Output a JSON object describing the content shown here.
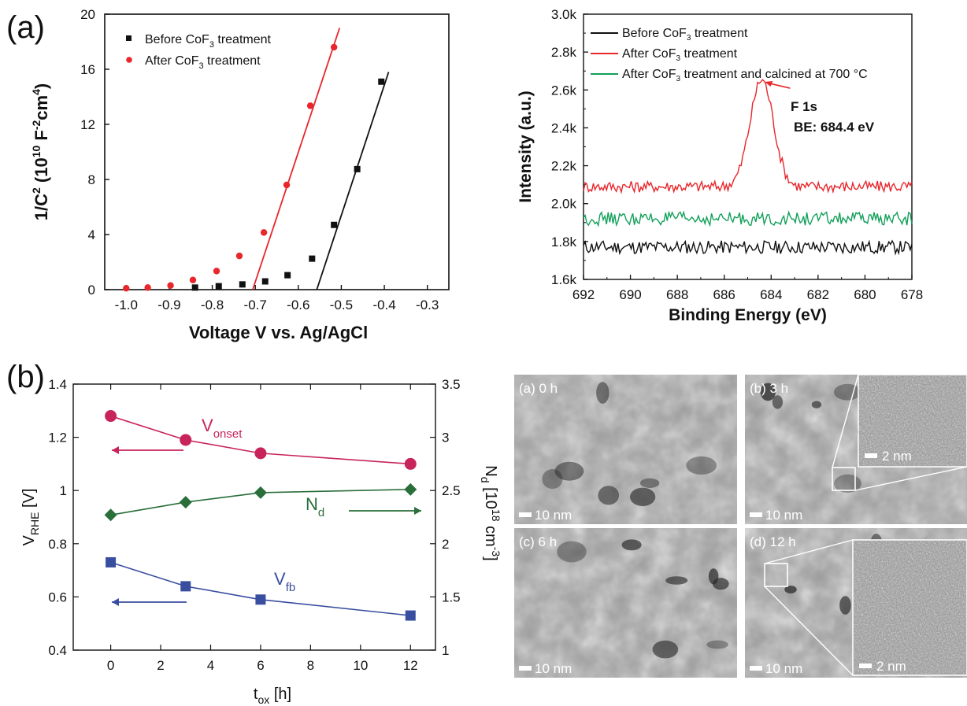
{
  "figure": {
    "panel_a_letter": "(a)",
    "panel_b_letter": "(b)"
  },
  "colors": {
    "black_series": "#111111",
    "red_series": "#e8262b",
    "green_series": "#12a05a",
    "pink_series": "#c8245c",
    "darkgreen_series": "#2a6e3a",
    "blue_series": "#3a4ea0"
  },
  "chart_data": [
    {
      "id": "mott-schottky",
      "type": "scatter",
      "xlabel": "Voltage V vs. Ag/AgCl",
      "ylabel_main": "1/C",
      "ylabel_sup1": "2",
      "ylabel_mid": " (10",
      "ylabel_sup2": "10",
      "ylabel_after": " F",
      "ylabel_sup3": "-2",
      "ylabel_cm": "cm",
      "ylabel_sup4": "4",
      "ylabel_end": ")",
      "xlim": [
        -1.05,
        -0.25
      ],
      "ylim": [
        0,
        20
      ],
      "xticks": [
        "-1.0",
        "-0.9",
        "-0.8",
        "-0.7",
        "-0.6",
        "-0.5",
        "-0.4",
        "-0.3"
      ],
      "xtick_values": [
        -1.0,
        -0.9,
        -0.8,
        -0.7,
        -0.6,
        -0.5,
        -0.4,
        -0.3
      ],
      "yticks": [
        "0",
        "4",
        "8",
        "12",
        "16",
        "20"
      ],
      "ytick_values": [
        0,
        4,
        8,
        12,
        16,
        20
      ],
      "legend_placement": "top-left",
      "series": [
        {
          "name": "Before CoF",
          "name_sub": "3",
          "name_tail": " treatment",
          "marker": "square",
          "color": "#111111",
          "x": [
            -0.84,
            -0.785,
            -0.73,
            -0.677,
            -0.625,
            -0.568,
            -0.517,
            -0.463,
            -0.407
          ],
          "y": [
            0.15,
            0.25,
            0.38,
            0.6,
            1.05,
            2.25,
            4.7,
            8.75,
            15.1
          ],
          "fit_x": [
            -0.557,
            -0.39
          ],
          "fit_y": [
            0,
            15.8
          ]
        },
        {
          "name": "After CoF",
          "name_sub": "3",
          "name_tail": " treatment",
          "marker": "circle",
          "color": "#e8262b",
          "x": [
            -1.0,
            -0.95,
            -0.897,
            -0.845,
            -0.79,
            -0.737,
            -0.68,
            -0.627,
            -0.572,
            -0.517
          ],
          "y": [
            0.1,
            0.15,
            0.3,
            0.7,
            1.35,
            2.45,
            4.15,
            7.6,
            13.35,
            17.6
          ],
          "fit_x": [
            -0.706,
            -0.504
          ],
          "fit_y": [
            0,
            19.0
          ]
        }
      ]
    },
    {
      "id": "xps-f1s",
      "type": "line",
      "xlabel": "Binding Energy (eV)",
      "ylabel": "Intensity (a.u.)",
      "xlim": [
        692,
        678
      ],
      "ylim": [
        1600,
        3000
      ],
      "xticks": [
        "692",
        "690",
        "688",
        "686",
        "684",
        "682",
        "680",
        "678"
      ],
      "xtick_values": [
        692,
        690,
        688,
        686,
        684,
        682,
        680,
        678
      ],
      "yticks": [
        "1.6k",
        "1.8k",
        "2.0k",
        "2.2k",
        "2.4k",
        "2.6k",
        "2.8k",
        "3.0k"
      ],
      "ytick_values": [
        1600,
        1800,
        2000,
        2200,
        2400,
        2600,
        2800,
        3000
      ],
      "legend_placement": "top-left",
      "annotation_peak": "F 1s",
      "annotation_be": "BE: 684.4 eV",
      "peak_x": 684.4,
      "peak_y": 2655,
      "series": [
        {
          "name": "Before CoF",
          "name_sub": "3",
          "name_tail": " treatment",
          "color": "#111111",
          "baseline": 1770,
          "noise": 35
        },
        {
          "name": "After CoF",
          "name_sub": "3",
          "name_tail": " treatment",
          "color": "#e8262b",
          "baseline": 2090,
          "noise": 30,
          "peak_center": 684.4,
          "peak_height": 565,
          "peak_sigma": 0.5
        },
        {
          "name": "After CoF",
          "name_sub": "3",
          "name_tail": " treatment and calcined at 700 °C",
          "color": "#12a05a",
          "baseline": 1920,
          "noise": 35
        }
      ]
    },
    {
      "id": "oxidation-time",
      "type": "line",
      "xlabel_main": "t",
      "xlabel_sub": "ox",
      "xlabel_tail": " [h]",
      "ylabel_left_main": "V",
      "ylabel_left_sub": "RHE",
      "ylabel_left_tail": " [V]",
      "ylabel_right_main": "N",
      "ylabel_right_sub": "d",
      "ylabel_right_mid": " [10",
      "ylabel_right_sup1": "18",
      "ylabel_right_cm": " cm",
      "ylabel_right_sup2": "-3",
      "ylabel_right_end": "]",
      "xlim": [
        -1.5,
        13
      ],
      "ylim_left": [
        0.4,
        1.4
      ],
      "ylim_right": [
        1,
        3.5
      ],
      "xticks": [
        "0",
        "2",
        "4",
        "6",
        "8",
        "10",
        "12"
      ],
      "xtick_values": [
        0,
        2,
        4,
        6,
        8,
        10,
        12
      ],
      "yticks_left": [
        "0.4",
        "0.6",
        "0.8",
        "1",
        "1.2",
        "1.4"
      ],
      "ytick_left_values": [
        0.4,
        0.6,
        0.8,
        1.0,
        1.2,
        1.4
      ],
      "yticks_right": [
        "1",
        "1.5",
        "2",
        "2.5",
        "3",
        "3.5"
      ],
      "ytick_right_values": [
        1,
        1.5,
        2,
        2.5,
        3,
        3.5
      ],
      "x": [
        0,
        3,
        6,
        12
      ],
      "series": [
        {
          "name_main": "V",
          "name_sub": "onset",
          "axis": "left",
          "marker": "circle",
          "color": "#c8245c",
          "values": [
            1.28,
            1.19,
            1.14,
            1.1
          ]
        },
        {
          "name_main": "N",
          "name_sub": "d",
          "axis": "right",
          "marker": "diamond",
          "color": "#2a6e3a",
          "values": [
            2.27,
            2.39,
            2.48,
            2.51
          ]
        },
        {
          "name_main": "V",
          "name_sub": "fb",
          "axis": "left",
          "marker": "square",
          "color": "#3a4ea0",
          "values": [
            0.73,
            0.64,
            0.59,
            0.53
          ]
        }
      ]
    }
  ],
  "tem": {
    "tiles": [
      {
        "label": "(a) 0 h",
        "scale": "10 nm"
      },
      {
        "label": "(b) 3 h",
        "scale": "10 nm",
        "inset_scale": "2 nm"
      },
      {
        "label": "(c) 6 h",
        "scale": "10 nm"
      },
      {
        "label": "(d) 12 h",
        "scale": "10 nm",
        "inset_scale": "2 nm"
      }
    ]
  }
}
